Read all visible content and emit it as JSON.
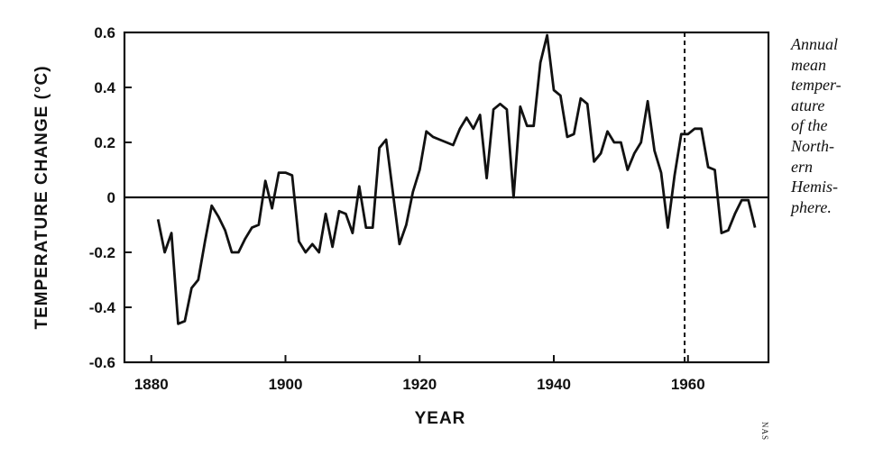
{
  "chart_data": {
    "type": "line",
    "xlabel": "YEAR",
    "ylabel": "TEMPERATURE CHANGE (°C)",
    "xlim": [
      1876,
      1972
    ],
    "ylim": [
      -0.6,
      0.6
    ],
    "xticks": [
      1880,
      1900,
      1920,
      1940,
      1960
    ],
    "yticks": [
      0.6,
      0.4,
      0.2,
      0,
      -0.2,
      -0.4,
      -0.6
    ],
    "ytick_labels": [
      "0.6",
      "0.4",
      "0.2",
      "0",
      "-0.2",
      "-0.4",
      "-0.6"
    ],
    "zero_line": true,
    "dashed_vline_x": 1959.5,
    "series": [
      {
        "x": [
          1881,
          1882,
          1883,
          1884,
          1885,
          1886,
          1887,
          1888,
          1889,
          1890,
          1891,
          1892,
          1893,
          1894,
          1895,
          1896,
          1897,
          1898,
          1899,
          1900,
          1901,
          1902,
          1903,
          1904,
          1905,
          1906,
          1907,
          1908,
          1909,
          1910,
          1911,
          1912,
          1913,
          1914,
          1915,
          1916,
          1917,
          1918,
          1919,
          1920,
          1921,
          1922,
          1923,
          1924,
          1925,
          1926,
          1927,
          1928,
          1929,
          1930,
          1931,
          1932,
          1933,
          1934,
          1935,
          1936,
          1937,
          1938,
          1939,
          1940,
          1941,
          1942,
          1943,
          1944,
          1945,
          1946,
          1947,
          1948,
          1949,
          1950,
          1951,
          1952,
          1953,
          1954,
          1955,
          1956,
          1957,
          1958,
          1959,
          1960,
          1961,
          1962,
          1963,
          1964,
          1965,
          1966,
          1967,
          1968,
          1969,
          1970
        ],
        "y": [
          -0.08,
          -0.2,
          -0.13,
          -0.46,
          -0.45,
          -0.33,
          -0.3,
          -0.16,
          -0.03,
          -0.07,
          -0.12,
          -0.2,
          -0.2,
          -0.15,
          -0.11,
          -0.1,
          0.06,
          -0.04,
          0.09,
          0.09,
          0.08,
          -0.16,
          -0.2,
          -0.17,
          -0.2,
          -0.06,
          -0.18,
          -0.05,
          -0.06,
          -0.13,
          0.04,
          -0.11,
          -0.11,
          0.18,
          0.21,
          0.02,
          -0.17,
          -0.1,
          0.02,
          0.1,
          0.24,
          0.22,
          0.21,
          0.2,
          0.19,
          0.25,
          0.29,
          0.25,
          0.3,
          0.07,
          0.32,
          0.34,
          0.32,
          0.0,
          0.33,
          0.26,
          0.26,
          0.49,
          0.59,
          0.39,
          0.37,
          0.22,
          0.23,
          0.36,
          0.34,
          0.13,
          0.16,
          0.24,
          0.2,
          0.2,
          0.1,
          0.16,
          0.2,
          0.35,
          0.17,
          0.09,
          -0.11,
          0.08,
          0.23,
          0.23,
          0.25,
          0.25,
          0.11,
          0.1,
          -0.13,
          -0.12,
          -0.06,
          -0.01,
          -0.01,
          -0.11
        ]
      }
    ]
  },
  "caption_lines": [
    "Annual",
    "mean",
    "temper-",
    "ature",
    "of the",
    "North-",
    "ern",
    "Hemis-",
    "phere."
  ],
  "credit": "NAS"
}
